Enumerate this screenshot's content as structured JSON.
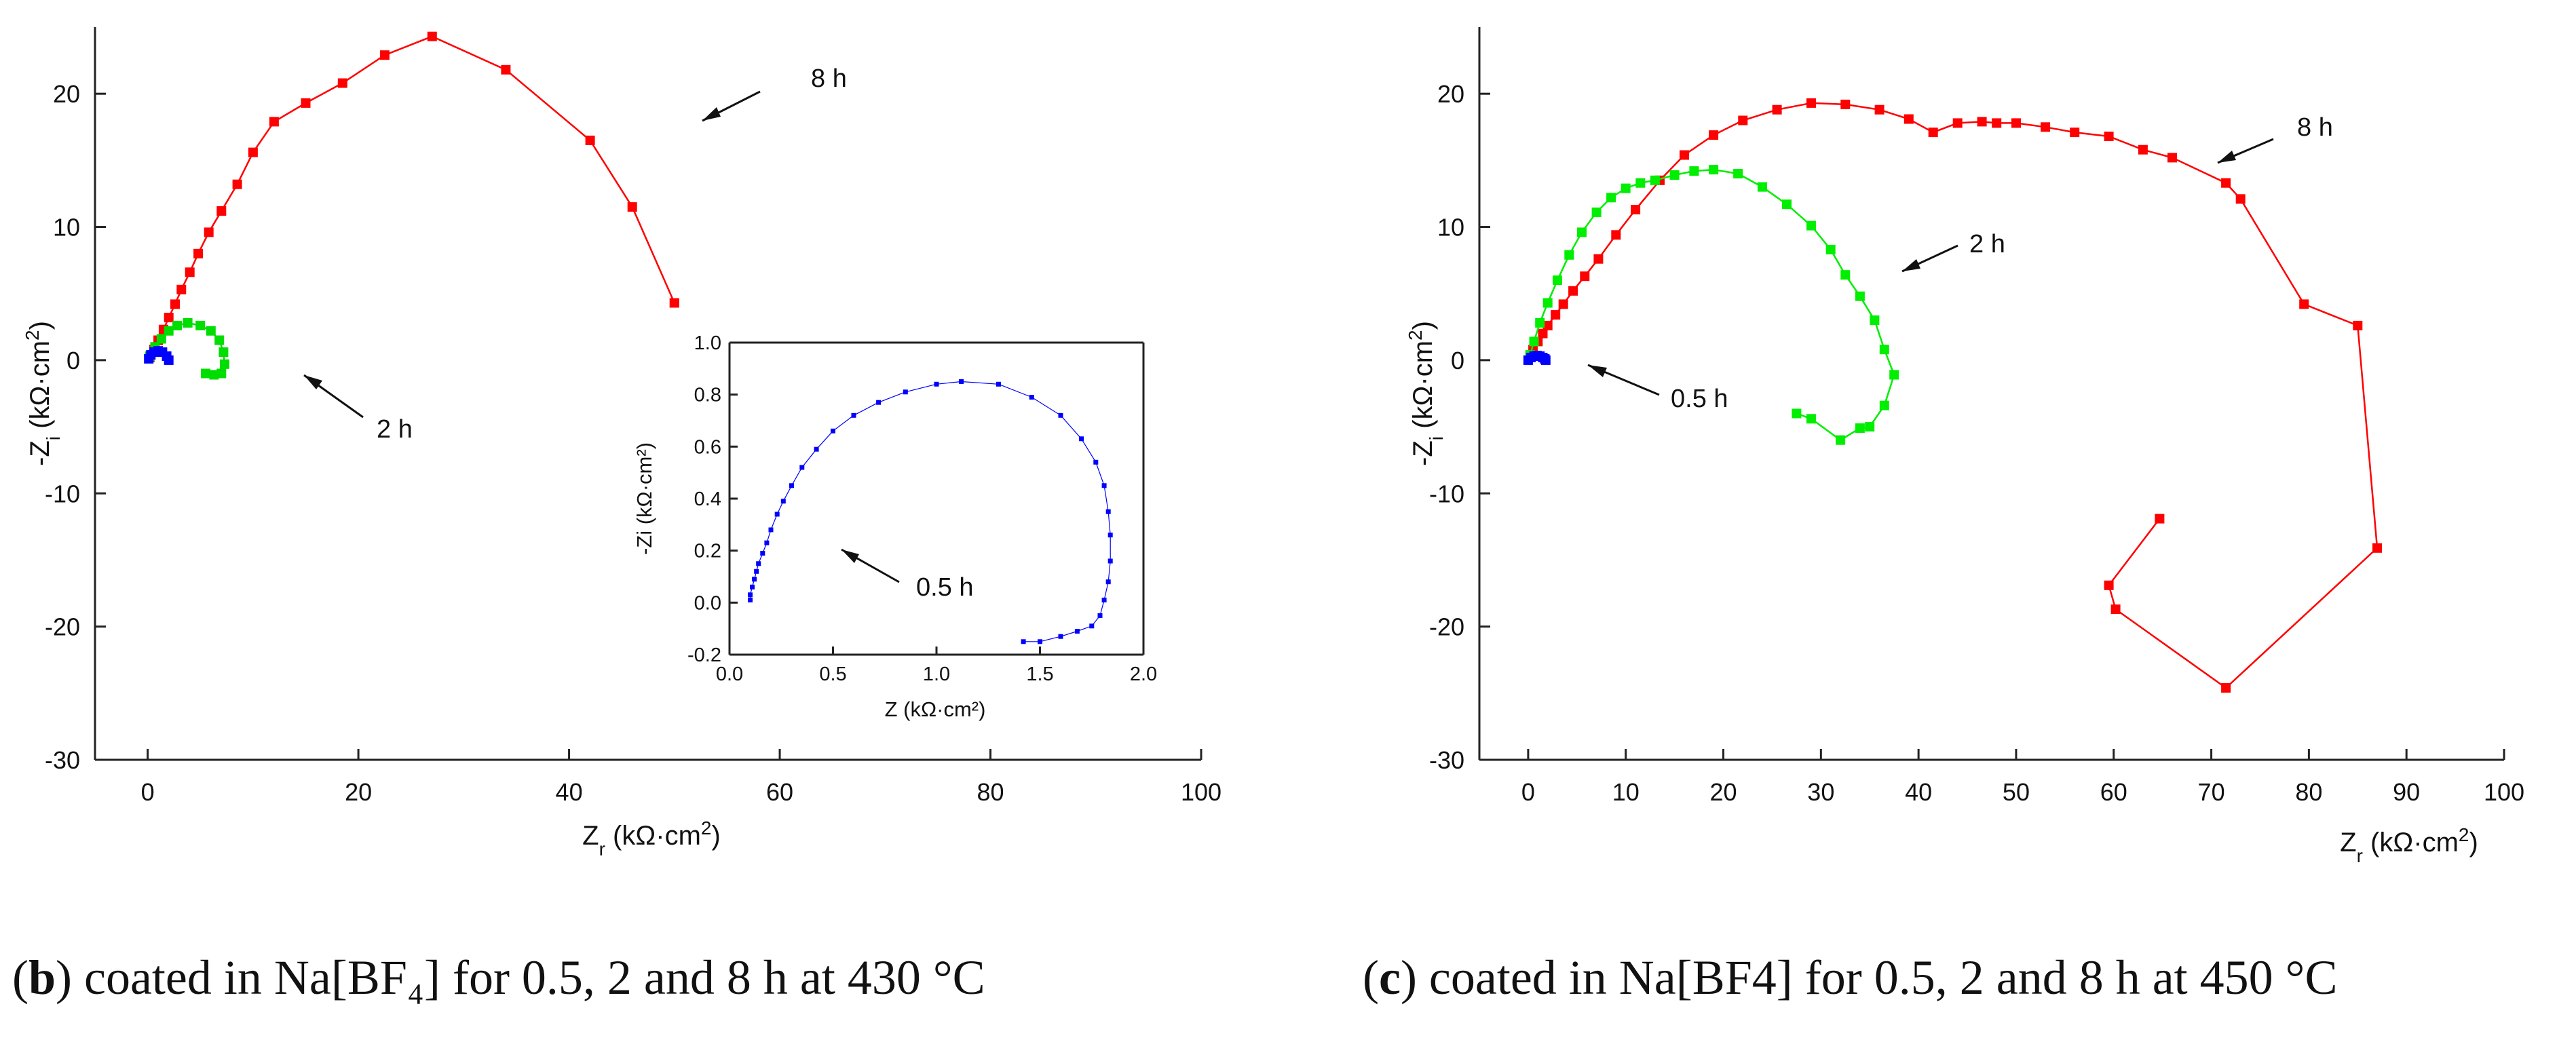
{
  "chart_data": [
    {
      "type": "line",
      "panel": "b",
      "xlabel": "Zr (kΩ·cm²)",
      "ylabel": "-Zi (kΩ·cm²)",
      "xlim": [
        -5,
        100
      ],
      "ylim": [
        -30,
        25
      ],
      "xticks": [
        "0",
        "20",
        "40",
        "60",
        "80",
        "100"
      ],
      "yticks": [
        "-30",
        "-20",
        "-10",
        "0",
        "10",
        "20"
      ],
      "annotations": [
        "8 h",
        "2 h"
      ],
      "series": [
        {
          "name": "8 h",
          "color": "#ff0000",
          "x": [
            0.2,
            0.6,
            1,
            1.5,
            2,
            2.6,
            3.2,
            4,
            4.8,
            5.8,
            7,
            8.5,
            10,
            12,
            15,
            18.5,
            22.5,
            27,
            34,
            42,
            46,
            50,
            50
          ],
          "y": [
            0.2,
            0.8,
            1.5,
            2.3,
            3.2,
            4.2,
            5.3,
            6.6,
            8,
            9.6,
            11.2,
            13.2,
            15.6,
            17.9,
            19.3,
            20.8,
            22.9,
            24.3,
            21.8,
            16.5,
            11.5,
            4.3,
            4.3
          ]
        },
        {
          "name": "2 h",
          "color": "#00dd00",
          "x": [
            0.2,
            0.7,
            1.3,
            2,
            2.8,
            3.8,
            5,
            6,
            6.8,
            7.2,
            7.3,
            7,
            6.3,
            5.5
          ],
          "y": [
            0.3,
            1,
            1.6,
            2.2,
            2.6,
            2.8,
            2.6,
            2.2,
            1.5,
            0.6,
            -0.3,
            -1,
            -1.1,
            -1
          ]
        },
        {
          "name": "0.5 h",
          "color": "#0000ff",
          "x": [
            0.1,
            0.3,
            0.6,
            1,
            1.4,
            1.8,
            2
          ],
          "y": [
            0.1,
            0.4,
            0.6,
            0.7,
            0.6,
            0.3,
            0
          ]
        }
      ],
      "inset": {
        "xlabel": "Z (kΩ·cm²)",
        "ylabel": "-Zi (kΩ·cm²)",
        "xlim": [
          0,
          2
        ],
        "ylim": [
          -0.2,
          1.0
        ],
        "xticks": [
          "0.0",
          "0.5",
          "1.0",
          "1.5",
          "2.0"
        ],
        "yticks": [
          "-0.2",
          "0.0",
          "0.2",
          "0.4",
          "0.6",
          "0.8",
          "1.0"
        ],
        "annotation": "0.5 h",
        "series": [
          {
            "name": "0.5 h",
            "color": "#0000ff",
            "x": [
              0.1,
              0.1,
              0.11,
              0.12,
              0.13,
              0.14,
              0.16,
              0.18,
              0.2,
              0.23,
              0.26,
              0.3,
              0.35,
              0.42,
              0.5,
              0.6,
              0.72,
              0.85,
              1.0,
              1.12,
              1.3,
              1.46,
              1.6,
              1.7,
              1.77,
              1.81,
              1.83,
              1.84,
              1.84,
              1.83,
              1.81,
              1.79,
              1.75,
              1.68,
              1.6,
              1.5,
              1.42
            ],
            "y": [
              0.01,
              0.03,
              0.06,
              0.09,
              0.12,
              0.15,
              0.19,
              0.23,
              0.28,
              0.34,
              0.39,
              0.45,
              0.52,
              0.59,
              0.66,
              0.72,
              0.77,
              0.81,
              0.84,
              0.85,
              0.84,
              0.79,
              0.72,
              0.63,
              0.54,
              0.45,
              0.35,
              0.26,
              0.16,
              0.08,
              0.01,
              -0.05,
              -0.09,
              -0.11,
              -0.13,
              -0.15,
              -0.15
            ]
          }
        ]
      }
    },
    {
      "type": "line",
      "panel": "c",
      "xlabel": "Zr (kΩ·cm²)",
      "ylabel": "-Zi (kΩ·cm²)",
      "xlim": [
        -5,
        100
      ],
      "ylim": [
        -30,
        25
      ],
      "xticks": [
        "0",
        "10",
        "20",
        "30",
        "40",
        "50",
        "60",
        "70",
        "80",
        "90",
        "100"
      ],
      "yticks": [
        "-30",
        "-20",
        "-10",
        "0",
        "10",
        "20"
      ],
      "annotations": [
        "8 h",
        "2 h",
        "0.5 h"
      ],
      "series": [
        {
          "name": "8 h",
          "color": "#ff0000",
          "x": [
            0.2,
            0.5,
            1,
            1.5,
            2,
            2.8,
            3.6,
            4.6,
            5.8,
            7.2,
            9,
            11,
            13.5,
            16,
            19,
            22,
            25.5,
            29,
            32.5,
            36,
            39,
            41.5,
            44,
            46.5,
            48,
            50,
            53,
            56,
            59.5,
            63,
            66,
            71.5,
            73,
            79.5,
            85,
            87,
            71.5,
            60.2,
            59.5,
            64.7
          ],
          "y": [
            0.3,
            0.8,
            1.4,
            2,
            2.6,
            3.4,
            4.2,
            5.2,
            6.3,
            7.6,
            9.4,
            11.3,
            13.5,
            15.4,
            16.9,
            18,
            18.8,
            19.3,
            19.2,
            18.8,
            18.1,
            17.1,
            17.8,
            17.9,
            17.8,
            17.8,
            17.5,
            17.1,
            16.8,
            15.8,
            15.2,
            13.3,
            12.1,
            4.2,
            2.6,
            -14.1,
            -24.6,
            -18.7,
            -16.9,
            -11.9
          ]
        },
        {
          "name": "2 h",
          "color": "#00ee00",
          "x": [
            0.2,
            0.6,
            1.2,
            2,
            3,
            4.2,
            5.5,
            7,
            8.5,
            10,
            11.5,
            13,
            15,
            17,
            19,
            21.5,
            24,
            26.5,
            29,
            31,
            32.5,
            34,
            35.5,
            36.5,
            37.5,
            36.5,
            35,
            34,
            32,
            29,
            27.5
          ],
          "y": [
            0.4,
            1.4,
            2.8,
            4.3,
            6,
            7.9,
            9.6,
            11.1,
            12.2,
            12.9,
            13.3,
            13.5,
            13.9,
            14.2,
            14.3,
            14,
            13,
            11.7,
            10.1,
            8.3,
            6.4,
            4.8,
            3,
            0.8,
            -1.1,
            -3.4,
            -5,
            -5.1,
            -6,
            -4.4,
            -4
          ]
        },
        {
          "name": "0.5 h",
          "color": "#0000ff",
          "x": [
            0,
            0.3,
            0.6,
            0.9,
            1.2,
            1.5,
            1.7,
            1.8
          ],
          "y": [
            0,
            0.2,
            0.3,
            0.35,
            0.3,
            0.2,
            0.1,
            0
          ]
        }
      ]
    }
  ],
  "captions": {
    "b": {
      "label": "b",
      "text": ") coated in Na[BF₄] for 0.5, 2 and 8 h at 430 °C"
    },
    "c": {
      "label": "c",
      "text": ") coated in Na[BF4] for 0.5, 2 and 8 h at 450 °C"
    }
  }
}
